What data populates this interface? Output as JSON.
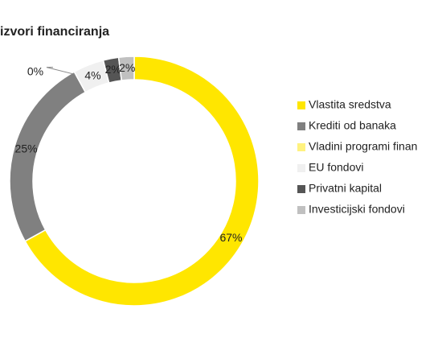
{
  "chart_data": {
    "type": "donut",
    "title": "izvori financiranja",
    "categories": [
      "Vlastita sredstva",
      "Krediti od banaka",
      "Vladini programi finan",
      "EU fondovi",
      "Privatni kapital",
      "Investicijski fondovi"
    ],
    "values": [
      67,
      25,
      0,
      4,
      2,
      2
    ],
    "value_labels": [
      "67%",
      "25%",
      "0%",
      "4%",
      "2%",
      "2%"
    ],
    "colors": [
      "#ffe600",
      "#808080",
      "#fff27f",
      "#f0f0f0",
      "#555555",
      "#c0c0c0"
    ],
    "legend": "right"
  }
}
